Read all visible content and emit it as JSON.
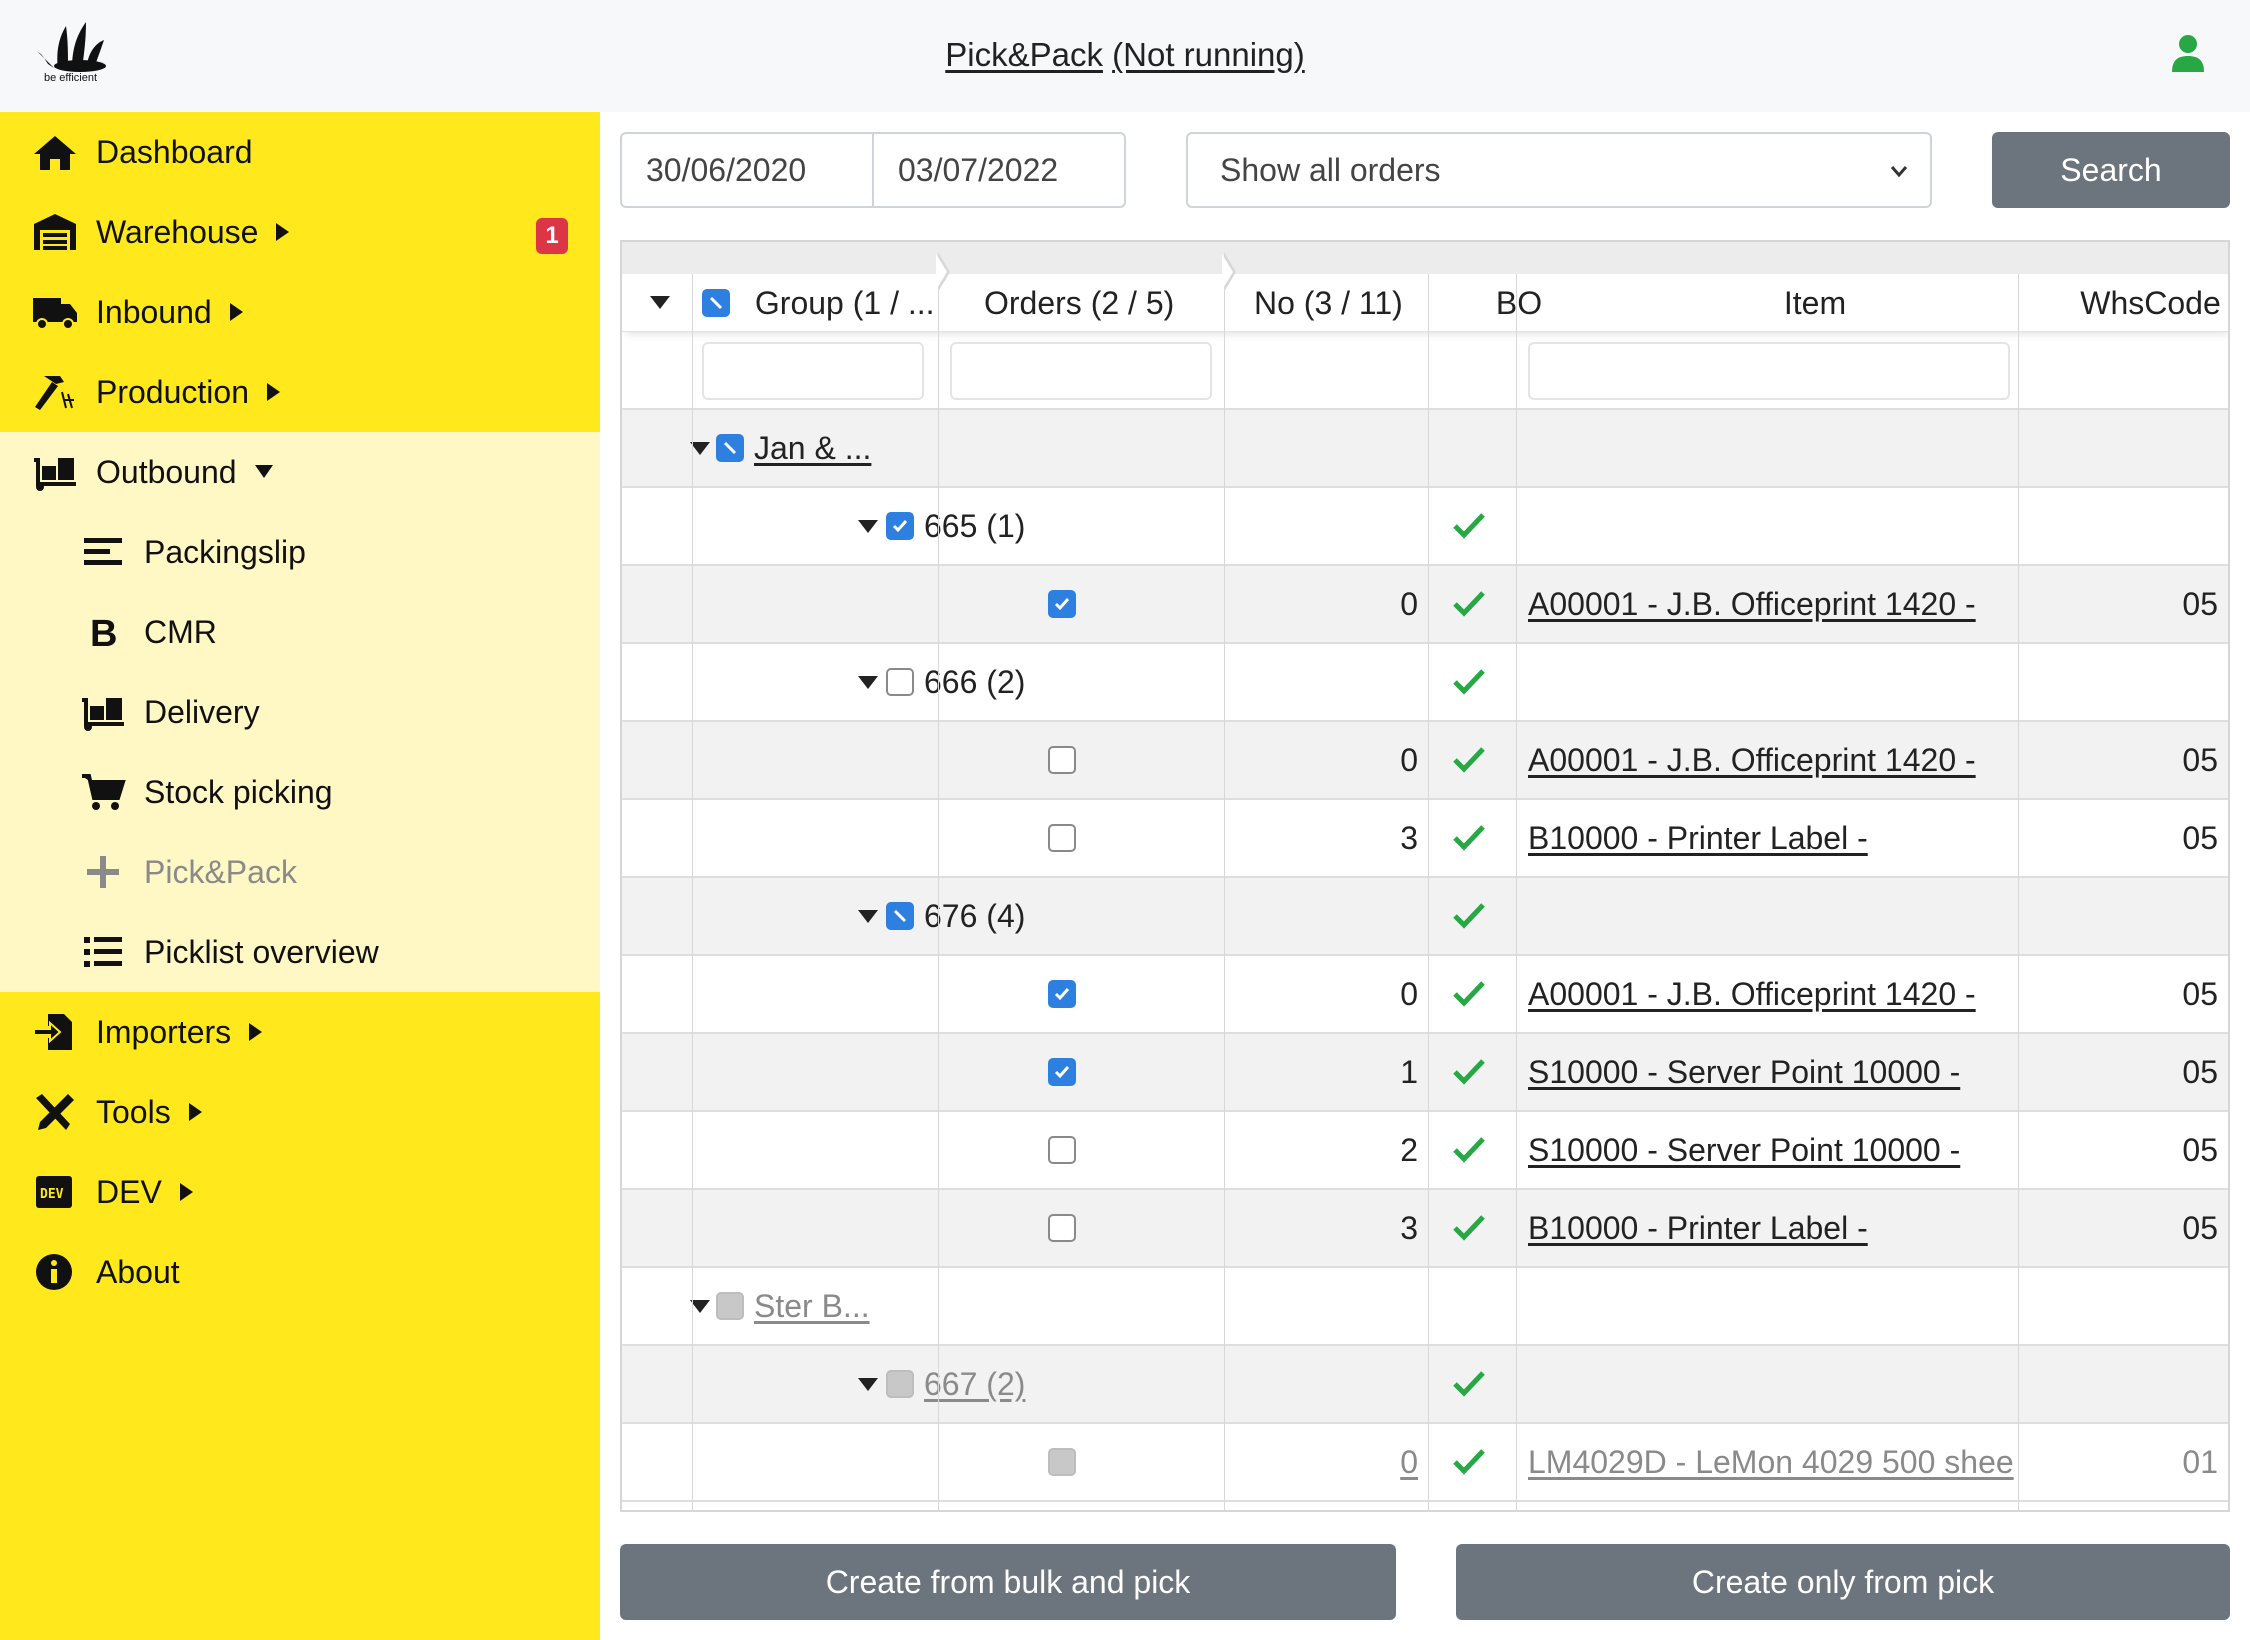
{
  "header": {
    "logo_text": "be efficient",
    "title": "Pick&Pack",
    "status": "(Not running)"
  },
  "sidebar": {
    "items": [
      {
        "label": "Dashboard",
        "icon": "home-icon"
      },
      {
        "label": "Warehouse",
        "icon": "warehouse-icon",
        "badge": "1"
      },
      {
        "label": "Inbound",
        "icon": "truck-icon"
      },
      {
        "label": "Production",
        "icon": "hammer-icon"
      },
      {
        "label": "Outbound",
        "icon": "dolly-icon"
      },
      {
        "label": "Importers",
        "icon": "file-import-icon"
      },
      {
        "label": "Tools",
        "icon": "tools-icon"
      },
      {
        "label": "DEV",
        "icon": "dev-icon"
      },
      {
        "label": "About",
        "icon": "info-icon"
      }
    ],
    "outbound_sub": [
      {
        "label": "Packingslip",
        "icon": "align-left-icon"
      },
      {
        "label": "CMR",
        "icon": "bold-b-icon"
      },
      {
        "label": "Delivery",
        "icon": "dolly-icon"
      },
      {
        "label": "Stock picking",
        "icon": "cart-icon"
      },
      {
        "label": "Pick&Pack",
        "icon": "plus-icon",
        "disabled": true
      },
      {
        "label": "Picklist overview",
        "icon": "list-icon"
      }
    ]
  },
  "filters": {
    "date_from": "30/06/2020",
    "date_to": "03/07/2022",
    "order_filter": "Show all orders",
    "search_label": "Search"
  },
  "grid": {
    "columns": {
      "group": "Group (1 / ...",
      "orders": "Orders (2 / 5)",
      "no": "No (3 / 11)",
      "bo": "BO",
      "item": "Item",
      "whscode": "WhsCode"
    },
    "rows": [
      {
        "level": "group",
        "label": "Jan & ...",
        "state": "partial"
      },
      {
        "level": "order",
        "label": "665 (1)",
        "state": "checked",
        "bo": true
      },
      {
        "level": "line",
        "no": "0",
        "item": "A00001 - J.B. Officeprint 1420 -",
        "whs": "05",
        "state": "checked",
        "bo": true
      },
      {
        "level": "order",
        "label": "666 (2)",
        "state": "unchecked",
        "bo": true
      },
      {
        "level": "line",
        "no": "0",
        "item": "A00001 - J.B. Officeprint 1420 -",
        "whs": "05",
        "state": "unchecked",
        "bo": true
      },
      {
        "level": "line",
        "no": "3",
        "item": "B10000 - Printer Label -",
        "whs": "05",
        "state": "unchecked",
        "bo": true
      },
      {
        "level": "order",
        "label": "676 (4)",
        "state": "partial",
        "bo": true
      },
      {
        "level": "line",
        "no": "0",
        "item": "A00001 - J.B. Officeprint 1420 -",
        "whs": "05",
        "state": "checked",
        "bo": true
      },
      {
        "level": "line",
        "no": "1",
        "item": "S10000 - Server Point 10000 -",
        "whs": "05",
        "state": "checked",
        "bo": true
      },
      {
        "level": "line",
        "no": "2",
        "item": "S10000 - Server Point 10000 -",
        "whs": "05",
        "state": "unchecked",
        "bo": true
      },
      {
        "level": "line",
        "no": "3",
        "item": "B10000 - Printer Label -",
        "whs": "05",
        "state": "unchecked",
        "bo": true
      },
      {
        "level": "group",
        "label": "Ster B...",
        "state": "gray",
        "muted": true
      },
      {
        "level": "order",
        "label": "667 (2)",
        "state": "gray",
        "bo": true,
        "muted": true
      },
      {
        "level": "line",
        "no": "0",
        "item": "LM4029D - LeMon 4029 500 shee",
        "whs": "01",
        "state": "gray",
        "bo": true,
        "muted": true
      }
    ]
  },
  "actions": {
    "bulk_label": "Create from bulk and pick",
    "pick_label": "Create only from pick"
  },
  "colors": {
    "sidebar": "#ffe81c",
    "submenu": "#fff8c4",
    "button": "#6c757d",
    "check": "#28a745",
    "checkbox": "#2d7fe0",
    "badge": "#dc3545",
    "user": "#28a745"
  }
}
